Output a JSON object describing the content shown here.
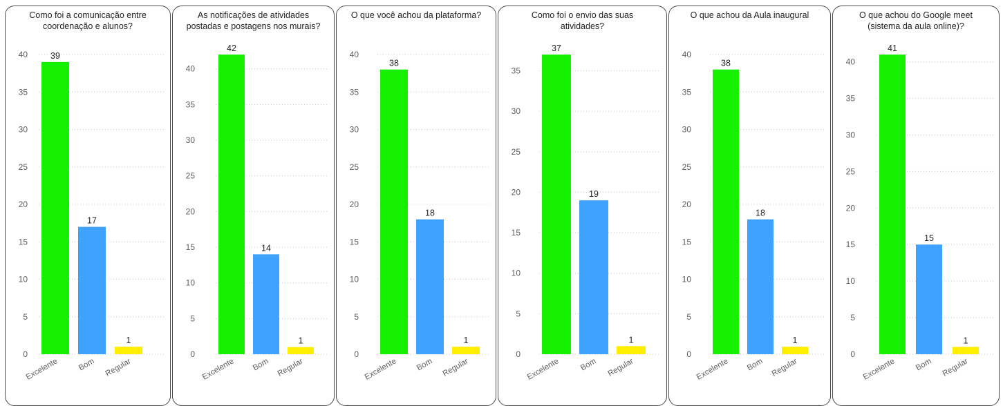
{
  "colors": {
    "excelente": "#14f000",
    "bom": "#3fa2ff",
    "regular": "#ffee00"
  },
  "chart_data": [
    {
      "type": "bar",
      "title_lines": [
        "Como foi a comunicação entre",
        "coordenação e alunos?"
      ],
      "categories": [
        "Excelente",
        "Bom",
        "Regular"
      ],
      "values": [
        39,
        17,
        1
      ],
      "ylim": [
        0,
        40
      ],
      "yticks": [
        0,
        5,
        10,
        15,
        20,
        25,
        30,
        35,
        40
      ],
      "grid": true
    },
    {
      "type": "bar",
      "title_lines": [
        "As notificações de atividades",
        "postadas e postagens nos murais?"
      ],
      "categories": [
        "Excelente",
        "Bom",
        "Regular"
      ],
      "values": [
        42,
        14,
        1
      ],
      "ylim": [
        0,
        42
      ],
      "yticks": [
        0,
        5,
        10,
        15,
        20,
        25,
        30,
        35,
        40
      ],
      "grid": true
    },
    {
      "type": "bar",
      "title_lines": [
        "O que você achou da plataforma?"
      ],
      "categories": [
        "Excelente",
        "Bom",
        "Regular"
      ],
      "values": [
        38,
        18,
        1
      ],
      "ylim": [
        0,
        40
      ],
      "yticks": [
        0,
        5,
        10,
        15,
        20,
        25,
        30,
        35,
        40
      ],
      "grid": true
    },
    {
      "type": "bar",
      "title_lines": [
        "Como foi o envio das suas",
        "atividades?"
      ],
      "categories": [
        "Excelente",
        "Bom",
        "Regular"
      ],
      "values": [
        37,
        19,
        1
      ],
      "ylim": [
        0,
        37
      ],
      "yticks": [
        0,
        5,
        10,
        15,
        20,
        25,
        30,
        35
      ],
      "grid": true
    },
    {
      "type": "bar",
      "title_lines": [
        "O que achou da Aula inaugural"
      ],
      "categories": [
        "Excelente",
        "Bom",
        "Regular"
      ],
      "values": [
        38,
        18,
        1
      ],
      "ylim": [
        0,
        40
      ],
      "yticks": [
        0,
        5,
        10,
        15,
        20,
        25,
        30,
        35,
        40
      ],
      "grid": true
    },
    {
      "type": "bar",
      "title_lines": [
        "O que achou do Google meet",
        "(sistema da aula online)?"
      ],
      "categories": [
        "Excelente",
        "Bom",
        "Regular"
      ],
      "values": [
        41,
        15,
        1
      ],
      "ylim": [
        0,
        41
      ],
      "yticks": [
        0,
        5,
        10,
        15,
        20,
        25,
        30,
        35,
        40
      ],
      "grid": true
    }
  ]
}
